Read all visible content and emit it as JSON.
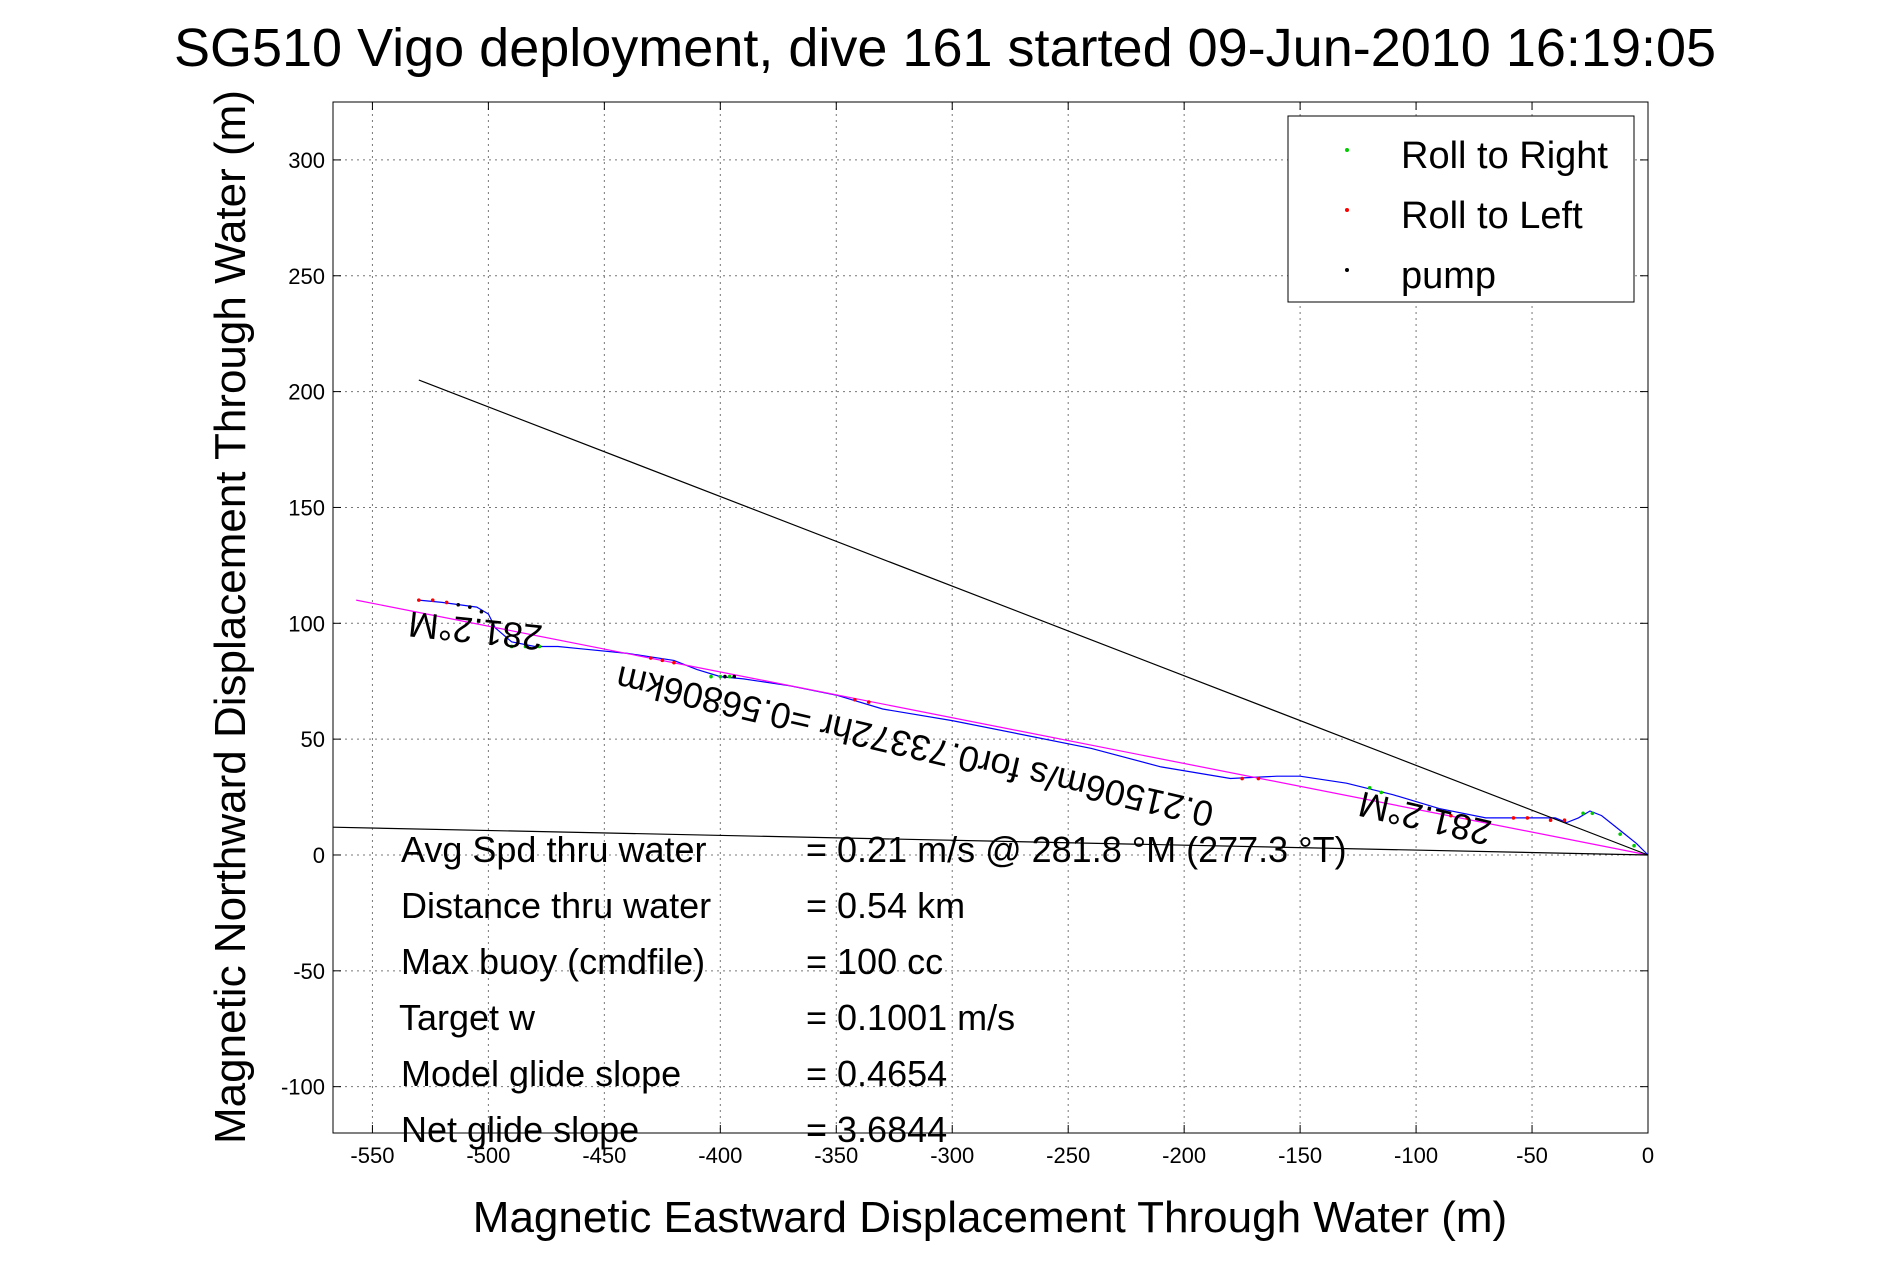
{
  "chart_data": {
    "type": "line",
    "title": "SG510 Vigo deployment, dive 161 started 09-Jun-2010 16:19:05",
    "xlabel": "Magnetic Eastward Displacement Through Water (m)",
    "ylabel": "Magnetic Northward Displacement Through Water (m)",
    "xlim": [
      -567,
      0
    ],
    "ylim": [
      -120,
      325
    ],
    "x_ticks": [
      -550,
      -500,
      -450,
      -400,
      -350,
      -300,
      -250,
      -200,
      -150,
      -100,
      -50,
      0
    ],
    "y_ticks": [
      -100,
      -50,
      0,
      50,
      100,
      150,
      200,
      250,
      300
    ],
    "grid": true,
    "legend": {
      "placement": "top-right",
      "entries": [
        {
          "label": "Roll to Right",
          "color": "#00cc00"
        },
        {
          "label": "Roll to Left",
          "color": "#ff0000"
        },
        {
          "label": "pump",
          "color": "#000000"
        }
      ]
    },
    "series": [
      {
        "color": "#0000ff",
        "x": [
          -530,
          -520,
          -505,
          -500,
          -497,
          -490,
          -480,
          -470,
          -460,
          -440,
          -420,
          -410,
          -400,
          -390,
          -370,
          -350,
          -330,
          -300,
          -270,
          -240,
          -210,
          -180,
          -160,
          -150,
          -130,
          -110,
          -90,
          -70,
          -55,
          -40,
          -35,
          -30,
          -25,
          -20,
          -15,
          -10,
          -5,
          0
        ],
        "y": [
          110,
          109,
          107,
          104,
          98,
          92,
          90,
          90,
          89,
          87,
          84,
          80,
          77,
          76,
          73,
          69,
          63,
          58,
          52,
          46,
          38,
          33,
          34,
          34,
          31,
          26,
          20,
          16,
          16,
          16,
          14,
          16,
          19,
          17,
          13,
          9,
          5,
          0
        ]
      },
      {
        "color": "#ff00ff",
        "x": [
          -557,
          0
        ],
        "y": [
          110,
          0
        ]
      },
      {
        "color": "#000000",
        "x": [
          -530,
          0
        ],
        "y": [
          205,
          0
        ]
      },
      {
        "color": "#000000",
        "x": [
          -567,
          0
        ],
        "y": [
          12,
          0
        ]
      }
    ],
    "marker_groups": [
      {
        "label": "Roll to Right",
        "color": "#00cc00",
        "points": [
          [
            -490,
            90
          ],
          [
            -484,
            90
          ],
          [
            -478,
            90
          ],
          [
            -404,
            77
          ],
          [
            -400,
            77
          ],
          [
            -396,
            77
          ],
          [
            -120,
            29
          ],
          [
            -115,
            27
          ],
          [
            -28,
            18
          ],
          [
            -24,
            18
          ],
          [
            -12,
            9
          ],
          [
            -6,
            4
          ]
        ]
      },
      {
        "label": "Roll to Left",
        "color": "#ff0000",
        "points": [
          [
            -530,
            110
          ],
          [
            -524,
            110
          ],
          [
            -518,
            109
          ],
          [
            -430,
            85
          ],
          [
            -425,
            84
          ],
          [
            -420,
            83
          ],
          [
            -342,
            67
          ],
          [
            -336,
            66
          ],
          [
            -175,
            33
          ],
          [
            -168,
            33
          ],
          [
            -85,
            17
          ],
          [
            -78,
            16
          ],
          [
            -58,
            16
          ],
          [
            -52,
            16
          ],
          [
            -42,
            15
          ],
          [
            -36,
            15
          ]
        ]
      },
      {
        "label": "pump",
        "color": "#000000",
        "points": [
          [
            -513,
            108
          ],
          [
            -508,
            107
          ],
          [
            -503,
            105
          ],
          [
            -398,
            77
          ],
          [
            -394,
            77
          ]
        ]
      }
    ],
    "annotations": [
      {
        "text": "281.2°M",
        "x": -505,
        "y": 102,
        "rotation": 186
      },
      {
        "text": "0.21506m/s for0.73372hr =0.56806km",
        "x": -315,
        "y": 52,
        "rotation": 193
      },
      {
        "text": "281.2°M",
        "x": -95,
        "y": 21,
        "rotation": 193
      }
    ],
    "stats": [
      {
        "label": "Avg Spd thru water",
        "value": "=  0.21 m/s @ 281.8 °M (277.3 °T)"
      },
      {
        "label": "Distance thru water",
        "value": "=  0.54 km"
      },
      {
        "label": "Max buoy (cmdfile)",
        "value": "= 100 cc"
      },
      {
        "label": "Target w",
        "value": "= 0.1001 m/s"
      },
      {
        "label": "Model glide slope",
        "value": "= 0.4654"
      },
      {
        "label": "Net glide slope",
        "value": "= 3.6844"
      }
    ]
  }
}
